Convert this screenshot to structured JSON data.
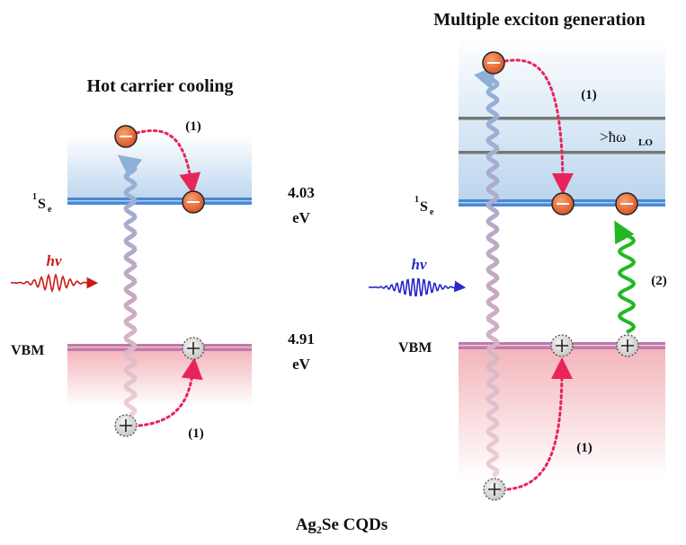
{
  "left_panel": {
    "title": "Hot carrier cooling",
    "photon_label": "hv",
    "level_top": "S",
    "level_top_sup": "1",
    "level_top_sub": "e",
    "level_bottom": "VBM",
    "energy_top": "4.03",
    "energy_top_unit": "eV",
    "energy_bottom": "4.91",
    "energy_bottom_unit": "eV",
    "step_top": "(1)",
    "step_bottom": "(1)"
  },
  "right_panel": {
    "title": "Multiple exciton generation",
    "photon_label": "hv",
    "level_top": "S",
    "level_top_sup": "1",
    "level_top_sub": "e",
    "level_bottom": "VBM",
    "phonon_label": ">ħω",
    "phonon_sub": "LO",
    "step_top": "(1)",
    "step_bottom": "(1)",
    "step_mid": "(2)"
  },
  "caption": {
    "main": "Ag",
    "sub": "2",
    "rest": "Se CQDs"
  },
  "colors": {
    "electron": "#e8602a",
    "hole": "#d8d8d8",
    "conduction_band": "#4a88d0",
    "valence_band": "#c07aa8",
    "cooling_arrow": "#e8245a",
    "photon_left": "#cc1a1a",
    "photon_right": "#2a2ac8",
    "mec_arrow": "#22b822"
  }
}
